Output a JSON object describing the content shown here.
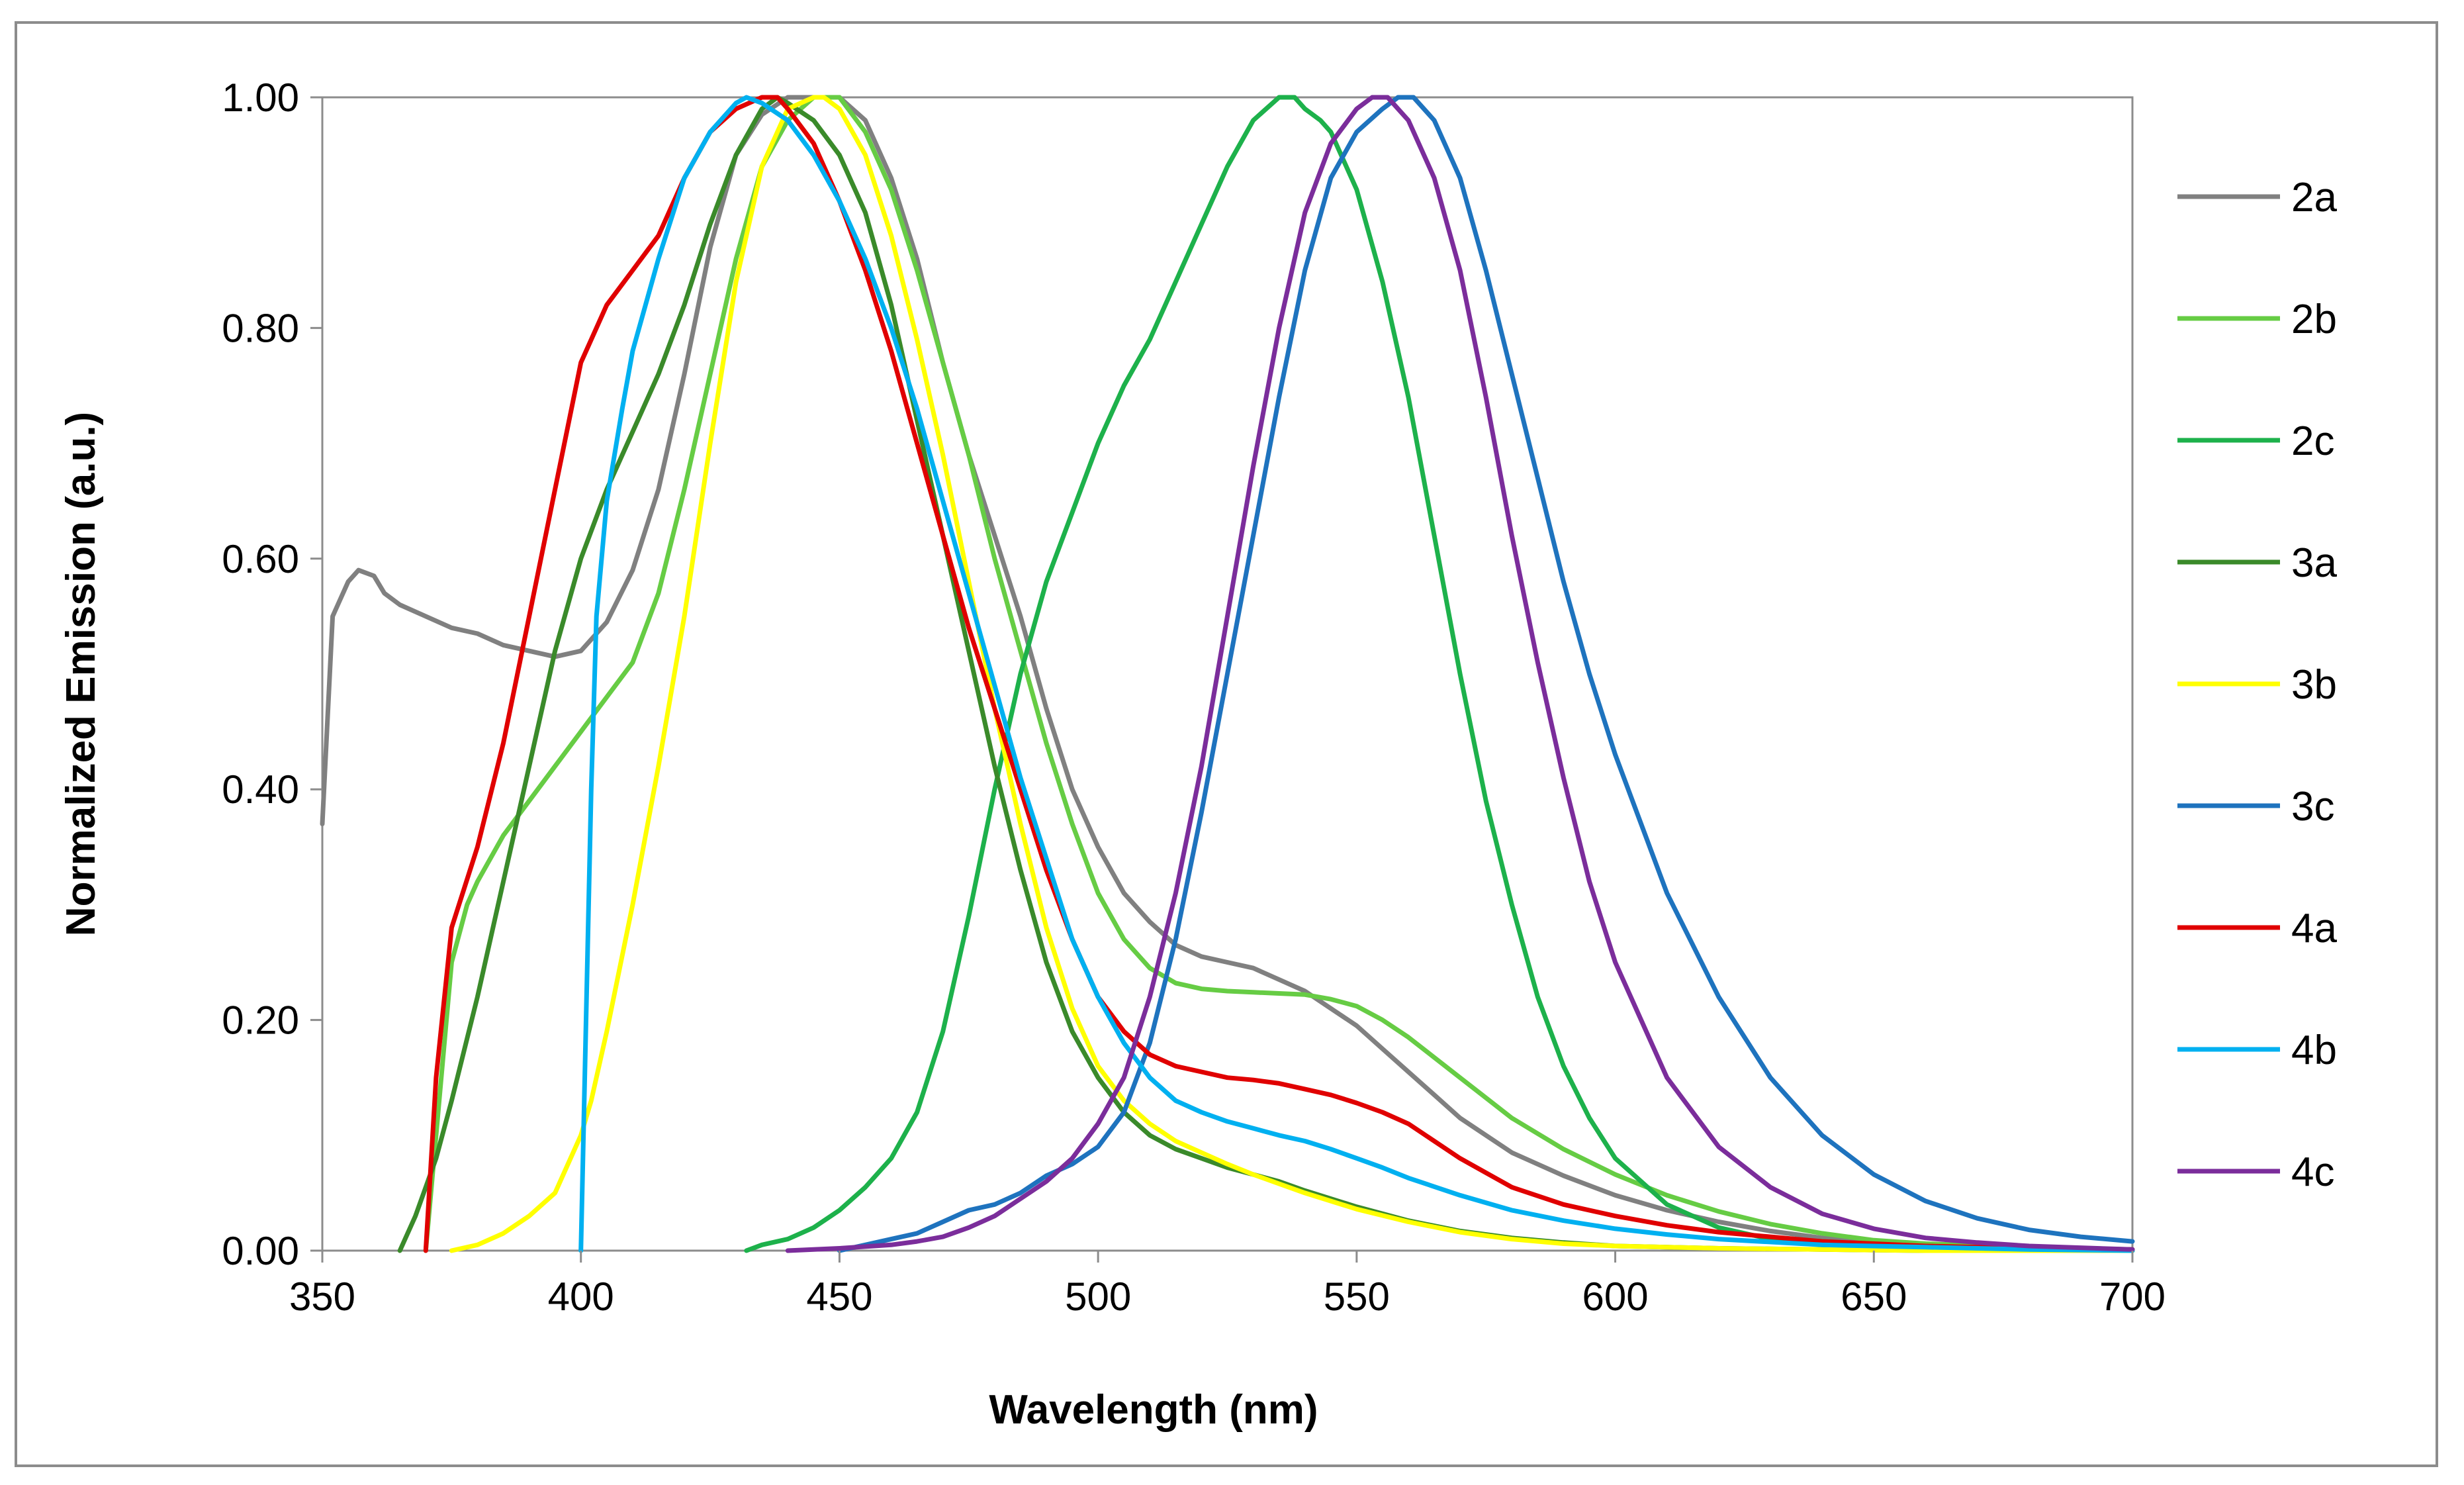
{
  "chart_data": {
    "type": "line",
    "title": "",
    "xlabel": "Wavelength (nm)",
    "ylabel": "Normalized Emission (a.u.)",
    "xlim": [
      350,
      700
    ],
    "ylim": [
      0,
      1
    ],
    "xticks": [
      350,
      400,
      450,
      500,
      550,
      600,
      650,
      700
    ],
    "yticks": [
      0.0,
      0.2,
      0.4,
      0.6,
      0.8,
      1.0
    ],
    "xtick_labels": [
      "350",
      "400",
      "450",
      "500",
      "550",
      "600",
      "650",
      "700"
    ],
    "ytick_labels": [
      "0.00",
      "0.20",
      "0.40",
      "0.60",
      "0.80",
      "1.00"
    ],
    "grid": false,
    "legend_position": "right",
    "series": [
      {
        "name": "2a",
        "color": "#808080",
        "x": [
          350,
          352,
          355,
          357,
          360,
          362,
          365,
          370,
          375,
          380,
          385,
          390,
          395,
          400,
          405,
          410,
          415,
          420,
          425,
          430,
          435,
          440,
          445,
          450,
          455,
          460,
          465,
          470,
          475,
          480,
          485,
          490,
          495,
          500,
          505,
          510,
          515,
          520,
          525,
          530,
          535,
          540,
          545,
          550,
          555,
          560,
          565,
          570,
          575,
          580,
          590,
          600,
          610,
          620,
          630,
          640,
          650,
          660,
          680,
          700
        ],
        "y": [
          0.37,
          0.55,
          0.58,
          0.59,
          0.585,
          0.57,
          0.56,
          0.55,
          0.54,
          0.535,
          0.525,
          0.52,
          0.515,
          0.52,
          0.545,
          0.59,
          0.66,
          0.76,
          0.87,
          0.95,
          0.985,
          1.0,
          1.0,
          1.0,
          0.98,
          0.93,
          0.86,
          0.77,
          0.69,
          0.62,
          0.55,
          0.47,
          0.4,
          0.35,
          0.31,
          0.285,
          0.265,
          0.255,
          0.25,
          0.245,
          0.235,
          0.225,
          0.21,
          0.195,
          0.175,
          0.155,
          0.135,
          0.115,
          0.1,
          0.085,
          0.065,
          0.048,
          0.035,
          0.025,
          0.017,
          0.011,
          0.007,
          0.004,
          0.002,
          0.001
        ]
      },
      {
        "name": "2b",
        "color": "#66CC44",
        "x": [
          370,
          372,
          375,
          378,
          380,
          385,
          390,
          395,
          400,
          405,
          410,
          415,
          420,
          425,
          430,
          435,
          440,
          445,
          450,
          455,
          460,
          465,
          470,
          475,
          480,
          485,
          490,
          495,
          500,
          505,
          510,
          515,
          520,
          525,
          530,
          535,
          540,
          545,
          550,
          555,
          560,
          570,
          580,
          590,
          600,
          610,
          620,
          630,
          640,
          650,
          660,
          680,
          700
        ],
        "y": [
          0.0,
          0.1,
          0.25,
          0.3,
          0.32,
          0.36,
          0.39,
          0.42,
          0.45,
          0.48,
          0.51,
          0.57,
          0.66,
          0.76,
          0.86,
          0.94,
          0.98,
          1.0,
          1.0,
          0.97,
          0.92,
          0.85,
          0.77,
          0.69,
          0.6,
          0.52,
          0.44,
          0.37,
          0.31,
          0.27,
          0.245,
          0.232,
          0.227,
          0.225,
          0.224,
          0.223,
          0.222,
          0.218,
          0.212,
          0.2,
          0.185,
          0.15,
          0.115,
          0.088,
          0.066,
          0.048,
          0.034,
          0.023,
          0.015,
          0.009,
          0.006,
          0.003,
          0.001
        ]
      },
      {
        "name": "2c",
        "color": "#1DB14B",
        "x": [
          432,
          435,
          440,
          445,
          450,
          455,
          460,
          465,
          470,
          475,
          480,
          485,
          490,
          495,
          500,
          505,
          510,
          515,
          520,
          525,
          530,
          535,
          538,
          540,
          543,
          545,
          550,
          555,
          560,
          565,
          570,
          575,
          580,
          585,
          590,
          595,
          600,
          610,
          620,
          630,
          640,
          650,
          660,
          680,
          700
        ],
        "y": [
          0.0,
          0.005,
          0.01,
          0.02,
          0.035,
          0.055,
          0.08,
          0.12,
          0.19,
          0.29,
          0.4,
          0.5,
          0.58,
          0.64,
          0.7,
          0.75,
          0.79,
          0.84,
          0.89,
          0.94,
          0.98,
          1.0,
          1.0,
          0.99,
          0.98,
          0.97,
          0.92,
          0.84,
          0.74,
          0.62,
          0.5,
          0.39,
          0.3,
          0.22,
          0.16,
          0.115,
          0.08,
          0.04,
          0.02,
          0.01,
          0.005,
          0.003,
          0.001,
          0.0,
          0.0
        ]
      },
      {
        "name": "3a",
        "color": "#3A8A2A",
        "x": [
          365,
          368,
          372,
          375,
          380,
          385,
          390,
          395,
          400,
          405,
          410,
          415,
          420,
          425,
          430,
          435,
          438,
          440,
          445,
          450,
          455,
          460,
          465,
          470,
          475,
          480,
          485,
          490,
          495,
          500,
          505,
          510,
          515,
          520,
          525,
          530,
          535,
          540,
          550,
          560,
          570,
          580,
          590,
          600,
          620,
          640,
          660,
          680,
          700
        ],
        "y": [
          0.0,
          0.03,
          0.08,
          0.13,
          0.22,
          0.32,
          0.42,
          0.52,
          0.6,
          0.66,
          0.71,
          0.76,
          0.82,
          0.89,
          0.95,
          0.99,
          1.0,
          0.995,
          0.98,
          0.95,
          0.9,
          0.82,
          0.72,
          0.62,
          0.52,
          0.42,
          0.33,
          0.25,
          0.19,
          0.15,
          0.12,
          0.1,
          0.088,
          0.08,
          0.072,
          0.066,
          0.06,
          0.052,
          0.038,
          0.026,
          0.017,
          0.011,
          0.007,
          0.004,
          0.002,
          0.001,
          0.0,
          0.0,
          0.0
        ]
      },
      {
        "name": "3b",
        "color": "#FFFF00",
        "x": [
          375,
          380,
          385,
          390,
          395,
          400,
          402,
          405,
          410,
          415,
          420,
          425,
          430,
          435,
          440,
          445,
          447,
          450,
          455,
          460,
          465,
          470,
          475,
          480,
          485,
          490,
          495,
          500,
          505,
          510,
          515,
          520,
          525,
          530,
          535,
          540,
          550,
          560,
          570,
          580,
          590,
          600,
          620,
          640,
          660,
          680,
          700
        ],
        "y": [
          0.0,
          0.005,
          0.015,
          0.03,
          0.05,
          0.1,
          0.13,
          0.19,
          0.3,
          0.42,
          0.55,
          0.7,
          0.84,
          0.94,
          0.99,
          1.0,
          1.0,
          0.99,
          0.95,
          0.88,
          0.79,
          0.69,
          0.58,
          0.47,
          0.37,
          0.28,
          0.21,
          0.16,
          0.13,
          0.11,
          0.095,
          0.085,
          0.075,
          0.066,
          0.058,
          0.05,
          0.036,
          0.025,
          0.016,
          0.01,
          0.006,
          0.004,
          0.002,
          0.001,
          0.0,
          0.0,
          0.0
        ]
      },
      {
        "name": "3c",
        "color": "#1E73BE",
        "x": [
          450,
          455,
          460,
          465,
          470,
          475,
          480,
          485,
          490,
          495,
          500,
          505,
          510,
          515,
          520,
          525,
          530,
          535,
          540,
          545,
          550,
          555,
          558,
          561,
          565,
          570,
          575,
          580,
          585,
          590,
          595,
          600,
          610,
          620,
          630,
          640,
          650,
          660,
          670,
          680,
          690,
          700
        ],
        "y": [
          0.0,
          0.005,
          0.01,
          0.015,
          0.025,
          0.035,
          0.04,
          0.05,
          0.065,
          0.075,
          0.09,
          0.12,
          0.18,
          0.27,
          0.38,
          0.5,
          0.62,
          0.74,
          0.85,
          0.93,
          0.97,
          0.99,
          1.0,
          1.0,
          0.98,
          0.93,
          0.85,
          0.76,
          0.67,
          0.58,
          0.5,
          0.43,
          0.31,
          0.22,
          0.15,
          0.1,
          0.066,
          0.043,
          0.028,
          0.018,
          0.012,
          0.008
        ]
      },
      {
        "name": "4a",
        "color": "#E00000",
        "x": [
          370,
          372,
          375,
          380,
          385,
          390,
          395,
          400,
          405,
          410,
          415,
          420,
          425,
          430,
          435,
          438,
          440,
          445,
          450,
          455,
          460,
          465,
          470,
          475,
          480,
          485,
          490,
          495,
          500,
          505,
          510,
          515,
          520,
          525,
          530,
          535,
          540,
          545,
          550,
          555,
          560,
          570,
          580,
          590,
          600,
          610,
          620,
          640,
          660,
          680,
          700
        ],
        "y": [
          0.0,
          0.15,
          0.28,
          0.35,
          0.44,
          0.55,
          0.66,
          0.77,
          0.82,
          0.85,
          0.88,
          0.93,
          0.97,
          0.99,
          1.0,
          1.0,
          0.99,
          0.96,
          0.91,
          0.85,
          0.78,
          0.7,
          0.62,
          0.54,
          0.47,
          0.4,
          0.33,
          0.27,
          0.22,
          0.19,
          0.17,
          0.16,
          0.155,
          0.15,
          0.148,
          0.145,
          0.14,
          0.135,
          0.128,
          0.12,
          0.11,
          0.08,
          0.055,
          0.04,
          0.03,
          0.022,
          0.016,
          0.008,
          0.004,
          0.002,
          0.001
        ]
      },
      {
        "name": "4b",
        "color": "#00B0F0",
        "x": [
          400,
          401,
          402,
          403,
          405,
          408,
          410,
          415,
          420,
          425,
          430,
          432,
          435,
          440,
          445,
          450,
          455,
          460,
          465,
          470,
          475,
          480,
          485,
          490,
          495,
          500,
          505,
          510,
          515,
          520,
          525,
          530,
          535,
          540,
          545,
          550,
          555,
          560,
          570,
          580,
          590,
          600,
          610,
          620,
          640,
          660,
          680,
          700
        ],
        "y": [
          0.0,
          0.2,
          0.4,
          0.55,
          0.65,
          0.73,
          0.78,
          0.86,
          0.93,
          0.97,
          0.995,
          1.0,
          0.995,
          0.98,
          0.95,
          0.91,
          0.86,
          0.8,
          0.73,
          0.65,
          0.57,
          0.49,
          0.41,
          0.34,
          0.27,
          0.22,
          0.18,
          0.15,
          0.13,
          0.12,
          0.112,
          0.106,
          0.1,
          0.095,
          0.088,
          0.08,
          0.072,
          0.063,
          0.048,
          0.035,
          0.026,
          0.019,
          0.014,
          0.01,
          0.005,
          0.003,
          0.001,
          0.0
        ]
      },
      {
        "name": "4c",
        "color": "#7B2D9B",
        "x": [
          440,
          450,
          460,
          465,
          470,
          475,
          480,
          485,
          490,
          495,
          500,
          505,
          510,
          515,
          520,
          525,
          530,
          535,
          540,
          545,
          550,
          553,
          556,
          560,
          565,
          570,
          575,
          580,
          585,
          590,
          595,
          600,
          610,
          620,
          630,
          640,
          650,
          660,
          670,
          680,
          700
        ],
        "y": [
          0.0,
          0.002,
          0.005,
          0.008,
          0.012,
          0.02,
          0.03,
          0.045,
          0.06,
          0.08,
          0.11,
          0.15,
          0.22,
          0.31,
          0.42,
          0.55,
          0.68,
          0.8,
          0.9,
          0.96,
          0.99,
          1.0,
          1.0,
          0.98,
          0.93,
          0.85,
          0.74,
          0.62,
          0.51,
          0.41,
          0.32,
          0.25,
          0.15,
          0.09,
          0.055,
          0.032,
          0.019,
          0.011,
          0.007,
          0.004,
          0.001
        ]
      }
    ]
  }
}
